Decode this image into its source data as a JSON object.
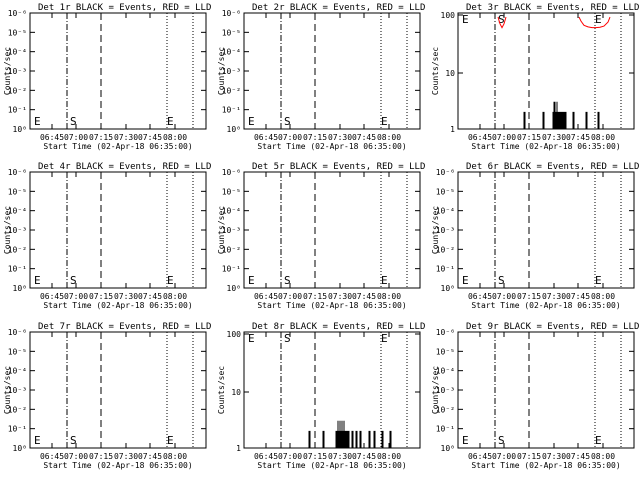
{
  "chart_data": [
    {
      "type": "line",
      "title": "Det 1r BLACK = Events, RED = LLD",
      "xlabel": "Start Time (02-Apr-18 06:35:00)",
      "ylabel": "Counts/sec",
      "scale": "log",
      "yticks": [
        "10⁰",
        "10⁻¹",
        "10⁻²",
        "10⁻³",
        "10⁻⁴",
        "10⁻⁵",
        "10⁻⁶"
      ],
      "xticks": [
        "06:45",
        "07:00",
        "07:15",
        "07:30",
        "07:45",
        "08:00"
      ],
      "markers": [
        "E",
        "S",
        "E"
      ],
      "series": []
    },
    {
      "type": "line",
      "title": "Det 2r BLACK = Events, RED = LLD",
      "xlabel": "Start Time (02-Apr-18 06:35:00)",
      "ylabel": "Counts/sec",
      "scale": "log",
      "yticks": [
        "10⁰",
        "10⁻¹",
        "10⁻²",
        "10⁻³",
        "10⁻⁴",
        "10⁻⁵",
        "10⁻⁶"
      ],
      "xticks": [
        "06:45",
        "07:00",
        "07:15",
        "07:30",
        "07:45",
        "08:00"
      ],
      "markers": [
        "E",
        "S",
        "E"
      ],
      "series": []
    },
    {
      "type": "line",
      "title": "Det 3r BLACK = Events, RED = LLD",
      "xlabel": "Start Time (02-Apr-18 06:35:00)",
      "ylabel": "Counts/sec",
      "scale": "log",
      "yticks": [
        "1",
        "10",
        "100"
      ],
      "xticks": [
        "06:45",
        "07:00",
        "07:15",
        "07:30",
        "07:45",
        "08:00"
      ],
      "markers": [
        "E",
        "S",
        "E"
      ],
      "series": [
        {
          "color": "#ff0000",
          "x": [
            40,
            42,
            44,
            46,
            48,
            50,
            52,
            54,
            56,
            58,
            60,
            62,
            64
          ],
          "y": [
            92,
            70,
            60,
            70,
            92,
            null,
            null,
            null,
            null,
            null,
            null,
            null,
            null
          ]
        },
        {
          "color": "#ff0000",
          "x": [
            121,
            123,
            126,
            130,
            134,
            138,
            142,
            146,
            150,
            152
          ],
          "y": [
            92,
            78,
            66,
            62,
            60,
            60,
            61,
            64,
            75,
            92
          ]
        },
        {
          "color": "#000000",
          "x": [
            66,
            66,
            66,
            67,
            67,
            67,
            85,
            85,
            85,
            86,
            86,
            86,
            95,
            95,
            95,
            96,
            96,
            96,
            97,
            97,
            97,
            98,
            98,
            98,
            99,
            99,
            99,
            100,
            100,
            100,
            101,
            101,
            101,
            102,
            102,
            102,
            103,
            103,
            103,
            104,
            104,
            104,
            105,
            105,
            105,
            106,
            106,
            106,
            107,
            107,
            107,
            108,
            108,
            108,
            115,
            115,
            115,
            116,
            116,
            116,
            128,
            128,
            128,
            129,
            129,
            129,
            140,
            140,
            140,
            141,
            141,
            141
          ],
          "y": [
            1,
            2,
            1,
            1,
            2,
            1,
            1,
            2,
            1,
            1,
            2,
            1,
            1,
            2,
            1,
            1,
            3,
            1,
            1,
            3,
            1,
            1,
            2,
            1,
            1,
            3,
            1,
            1,
            2,
            1,
            1,
            2,
            1,
            1,
            2,
            1,
            1,
            2,
            1,
            1,
            2,
            1,
            1,
            2,
            1,
            1,
            2,
            1,
            1,
            2,
            1,
            1,
            2,
            1,
            1,
            2,
            1,
            1,
            2,
            1,
            1,
            2,
            1,
            1,
            2,
            1,
            1,
            2,
            1,
            1,
            2,
            1
          ]
        }
      ]
    },
    {
      "type": "line",
      "title": "Det 4r BLACK = Events, RED = LLD",
      "xlabel": "Start Time (02-Apr-18 06:35:00)",
      "ylabel": "Counts/sec",
      "scale": "log",
      "yticks": [
        "10⁰",
        "10⁻¹",
        "10⁻²",
        "10⁻³",
        "10⁻⁴",
        "10⁻⁵",
        "10⁻⁶"
      ],
      "xticks": [
        "06:45",
        "07:00",
        "07:15",
        "07:30",
        "07:45",
        "08:00"
      ],
      "markers": [
        "E",
        "S",
        "E"
      ],
      "series": []
    },
    {
      "type": "line",
      "title": "Det 5r BLACK = Events, RED = LLD",
      "xlabel": "Start Time (02-Apr-18 06:35:00)",
      "ylabel": "Counts/sec",
      "scale": "log",
      "yticks": [
        "10⁰",
        "10⁻¹",
        "10⁻²",
        "10⁻³",
        "10⁻⁴",
        "10⁻⁵",
        "10⁻⁶"
      ],
      "xticks": [
        "06:45",
        "07:00",
        "07:15",
        "07:30",
        "07:45",
        "08:00"
      ],
      "markers": [
        "E",
        "S",
        "E"
      ],
      "series": []
    },
    {
      "type": "line",
      "title": "Det 6r BLACK = Events, RED = LLD",
      "xlabel": "Start Time (02-Apr-18 06:35:00)",
      "ylabel": "Counts/sec",
      "scale": "log",
      "yticks": [
        "10⁰",
        "10⁻¹",
        "10⁻²",
        "10⁻³",
        "10⁻⁴",
        "10⁻⁵",
        "10⁻⁶"
      ],
      "xticks": [
        "06:45",
        "07:00",
        "07:15",
        "07:30",
        "07:45",
        "08:00"
      ],
      "markers": [
        "E",
        "S",
        "E"
      ],
      "series": []
    },
    {
      "type": "line",
      "title": "Det 7r BLACK = Events, RED = LLD",
      "xlabel": "Start Time (02-Apr-18 06:35:00)",
      "ylabel": "Counts/sec",
      "scale": "log",
      "yticks": [
        "10⁰",
        "10⁻¹",
        "10⁻²",
        "10⁻³",
        "10⁻⁴",
        "10⁻⁵",
        "10⁻⁶"
      ],
      "xticks": [
        "06:45",
        "07:00",
        "07:15",
        "07:30",
        "07:45",
        "08:00"
      ],
      "markers": [
        "E",
        "S",
        "E"
      ],
      "series": []
    },
    {
      "type": "line",
      "title": "Det 8r BLACK = Events, RED = LLD",
      "xlabel": "Start Time (02-Apr-18 06:35:00)",
      "ylabel": "Counts/sec",
      "scale": "log",
      "yticks": [
        "1",
        "10",
        "100"
      ],
      "xticks": [
        "06:45",
        "07:00",
        "07:15",
        "07:30",
        "07:45",
        "08:00"
      ],
      "markers": [
        "E",
        "S",
        "E"
      ],
      "series": [
        {
          "color": "#000000",
          "x": [
            65,
            65,
            65,
            66,
            66,
            66,
            79,
            79,
            79,
            80,
            80,
            80,
            92,
            92,
            92,
            93,
            93,
            93,
            94,
            94,
            94,
            95,
            95,
            95,
            96,
            96,
            96,
            97,
            97,
            97,
            98,
            98,
            98,
            99,
            99,
            99,
            100,
            100,
            100,
            101,
            101,
            101,
            102,
            102,
            102,
            103,
            103,
            103,
            104,
            104,
            104,
            105,
            105,
            105,
            108,
            108,
            108,
            109,
            109,
            109,
            112,
            112,
            112,
            113,
            113,
            113,
            116,
            116,
            116,
            117,
            117,
            117,
            125,
            125,
            125,
            126,
            126,
            126,
            130,
            130,
            130,
            131,
            131,
            131,
            138,
            138,
            138,
            139,
            139,
            139,
            146,
            146,
            146,
            147,
            147,
            147
          ],
          "y": [
            1,
            2,
            1,
            1,
            2,
            1,
            1,
            2,
            1,
            1,
            2,
            1,
            1,
            2,
            1,
            1,
            2,
            1,
            1,
            3,
            1,
            1,
            2,
            1,
            1,
            3,
            1,
            1,
            2,
            1,
            1,
            3,
            1,
            1,
            2,
            1,
            1,
            3,
            1,
            1,
            2,
            1,
            1,
            2,
            1,
            1,
            2,
            1,
            1,
            2,
            1,
            1,
            2,
            1,
            1,
            2,
            1,
            1,
            2,
            1,
            1,
            2,
            1,
            1,
            2,
            1,
            1,
            2,
            1,
            1,
            2,
            1,
            1,
            2,
            1,
            1,
            2,
            1,
            1,
            2,
            1,
            1,
            2,
            1,
            1,
            2,
            1,
            1,
            2,
            1,
            1,
            2,
            1,
            1,
            2,
            1
          ]
        }
      ]
    },
    {
      "type": "line",
      "title": "Det 9r BLACK = Events, RED = LLD",
      "xlabel": "Start Time (02-Apr-18 06:35:00)",
      "ylabel": "Counts/sec",
      "scale": "log",
      "yticks": [
        "10⁰",
        "10⁻¹",
        "10⁻²",
        "10⁻³",
        "10⁻⁴",
        "10⁻⁵",
        "10⁻⁶"
      ],
      "xticks": [
        "06:45",
        "07:00",
        "07:15",
        "07:30",
        "07:45",
        "08:00"
      ],
      "markers": [
        "E",
        "S",
        "E"
      ],
      "series": []
    }
  ]
}
